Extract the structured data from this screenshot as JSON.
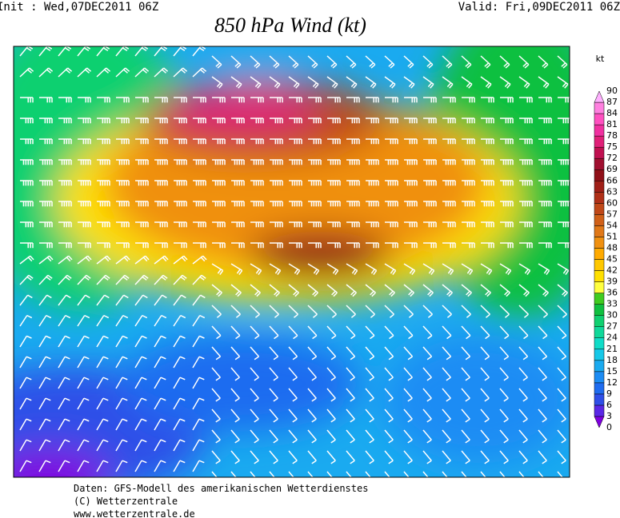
{
  "header": {
    "init": "Init : Wed,07DEC2011 06Z",
    "valid": "Valid:  Fri,09DEC2011  06Z",
    "title": "850 hPa Wind (kt)"
  },
  "legend": {
    "unit": "kt",
    "levels": [
      0,
      3,
      6,
      9,
      12,
      15,
      18,
      21,
      24,
      27,
      30,
      33,
      36,
      39,
      42,
      45,
      48,
      51,
      54,
      57,
      60,
      63,
      66,
      69,
      72,
      75,
      78,
      81,
      84,
      87,
      90
    ],
    "colors": [
      "#7f00e0",
      "#5a28e6",
      "#2f4fe8",
      "#1f6cf0",
      "#1c8cf4",
      "#1aaaf0",
      "#16c8e8",
      "#10dcc8",
      "#10d89a",
      "#10d070",
      "#10c040",
      "#40cc20",
      "#ffff40",
      "#ffe000",
      "#ffc800",
      "#ffaa00",
      "#f09010",
      "#e07818",
      "#d06018",
      "#c04818",
      "#b03018",
      "#a02018",
      "#901018",
      "#a01030",
      "#c01050",
      "#e02078",
      "#f030a0",
      "#ff50c0",
      "#ff80e0",
      "#ffb0ff"
    ]
  },
  "footer": [
    "Daten: GFS-Modell des amerikanischen Wetterdienstes",
    "(C) Wetterzentrale",
    "www.wetterzentrale.de"
  ]
}
